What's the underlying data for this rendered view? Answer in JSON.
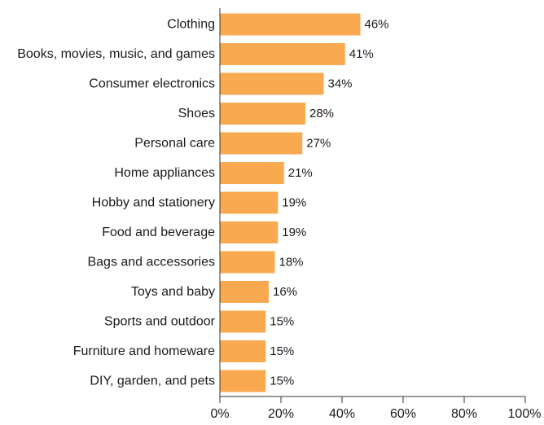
{
  "chart_data": {
    "type": "bar",
    "orientation": "horizontal",
    "categories": [
      "Clothing",
      "Books, movies, music, and games",
      "Consumer electronics",
      "Shoes",
      "Personal care",
      "Home appliances",
      "Hobby and stationery",
      "Food and beverage",
      "Bags and accessories",
      "Toys and baby",
      "Sports and outdoor",
      "Furniture and homeware",
      "DIY, garden, and pets"
    ],
    "values": [
      46,
      41,
      34,
      28,
      27,
      21,
      19,
      19,
      18,
      16,
      15,
      15,
      15
    ],
    "value_labels": [
      "46%",
      "41%",
      "34%",
      "28%",
      "27%",
      "21%",
      "19%",
      "19%",
      "18%",
      "16%",
      "15%",
      "15%",
      "15%"
    ],
    "xlim": [
      0,
      100
    ],
    "x_ticks": [
      0,
      20,
      40,
      60,
      80,
      100
    ],
    "x_tick_labels": [
      "0%",
      "20%",
      "40%",
      "60%",
      "80%",
      "100%"
    ],
    "title": "",
    "xlabel": "",
    "ylabel": "",
    "grid": false,
    "bar_color": "#F9A94F",
    "axis_color": "#333333",
    "text_color": "#1a1a1a"
  }
}
